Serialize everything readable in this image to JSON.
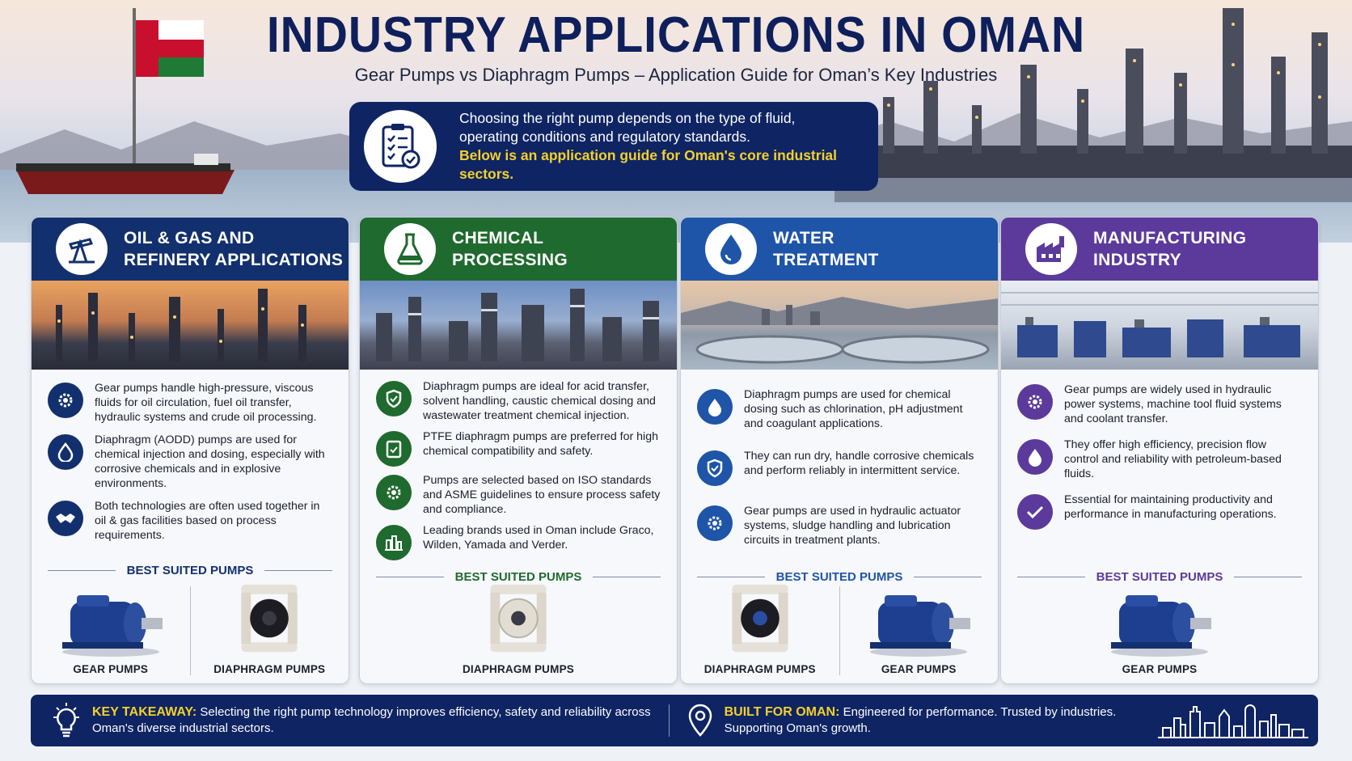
{
  "header": {
    "title": "INDUSTRY APPLICATIONS IN OMAN",
    "subtitle": "Gear Pumps vs Diaphragm Pumps – Application Guide for Oman’s Key Industries",
    "intro_line1": "Choosing the right pump depends on the type of fluid,",
    "intro_line2": "operating conditions and regulatory standards.",
    "intro_highlight": "Below is an application guide for Oman's core industrial sectors."
  },
  "colors": {
    "oil": "#13306e",
    "chem": "#1f6a2e",
    "water": "#1f55a8",
    "manu": "#5b3a9b",
    "navy": "#0f2463",
    "accent_yellow": "#f3d12b"
  },
  "cards": [
    {
      "title_line1": "OIL & GAS AND",
      "title_line2": "REFINERY APPLICATIONS",
      "icon": "oil-pump-icon",
      "items": [
        {
          "icon": "gear-icon",
          "text": "Gear pumps handle high-pressure, viscous fluids for oil circulation, fuel oil transfer, hydraulic systems and crude oil processing."
        },
        {
          "icon": "drop-icon",
          "text": "Diaphragm (AODD) pumps are used for chemical injection and dosing, especially with corrosive chemicals and in explosive environments."
        },
        {
          "icon": "handshake-icon",
          "text": "Both technologies are often used together in oil & gas facilities based on process requirements."
        }
      ],
      "best_label": "BEST SUITED PUMPS",
      "pumps": [
        "GEAR PUMPS",
        "DIAPHRAGM PUMPS"
      ]
    },
    {
      "title_line1": "CHEMICAL",
      "title_line2": "PROCESSING",
      "icon": "flask-icon",
      "items": [
        {
          "icon": "shield-icon",
          "text": "Diaphragm pumps are ideal for acid transfer, solvent handling, caustic chemical dosing and wastewater treatment chemical injection."
        },
        {
          "icon": "clipboard-check-icon",
          "text": "PTFE diaphragm pumps are preferred for high chemical compatibility and safety."
        },
        {
          "icon": "gear-icon",
          "text": "Pumps are selected based on ISO standards and ASME guidelines to ensure process safety and compliance."
        },
        {
          "icon": "building-icon",
          "text": "Leading brands used in Oman include Graco, Wilden, Yamada and Verder."
        }
      ],
      "best_label": "BEST SUITED PUMPS",
      "pumps": [
        "DIAPHRAGM PUMPS"
      ]
    },
    {
      "title_line1": "WATER",
      "title_line2": "TREATMENT",
      "icon": "water-drop-icon",
      "items": [
        {
          "icon": "drop-icon",
          "text": "Diaphragm pumps are used for chemical dosing such as chlorination, pH adjustment and coagulant applications."
        },
        {
          "icon": "shield-check-icon",
          "text": "They can run dry, handle corrosive chemicals and perform reliably in intermittent service."
        },
        {
          "icon": "gear-icon",
          "text": "Gear pumps are used in hydraulic actuator systems, sludge handling and lubrication circuits in treatment plants."
        }
      ],
      "best_label": "BEST SUITED PUMPS",
      "pumps": [
        "DIAPHRAGM PUMPS",
        "GEAR PUMPS"
      ]
    },
    {
      "title_line1": "MANUFACTURING",
      "title_line2": "INDUSTRY",
      "icon": "factory-icon",
      "items": [
        {
          "icon": "gear-icon",
          "text": "Gear pumps are widely used in hydraulic power systems, machine tool fluid systems and coolant transfer."
        },
        {
          "icon": "drop-icon",
          "text": "They offer high efficiency, precision flow control and reliability with petroleum-based fluids."
        },
        {
          "icon": "check-icon",
          "text": "Essential for maintaining productivity and performance in manufacturing operations."
        }
      ],
      "best_label": "BEST SUITED PUMPS",
      "pumps": [
        "GEAR PUMPS"
      ]
    }
  ],
  "footer": {
    "takeaway_label": "KEY TAKEAWAY:",
    "takeaway_text1": "Selecting the right pump technology improves efficiency, safety and reliability across",
    "takeaway_text2": "Oman's diverse industrial sectors.",
    "built_label": "BUILT FOR OMAN:",
    "built_text1": "Engineered for performance. Trusted by industries.",
    "built_text2": "Supporting Oman's growth."
  }
}
